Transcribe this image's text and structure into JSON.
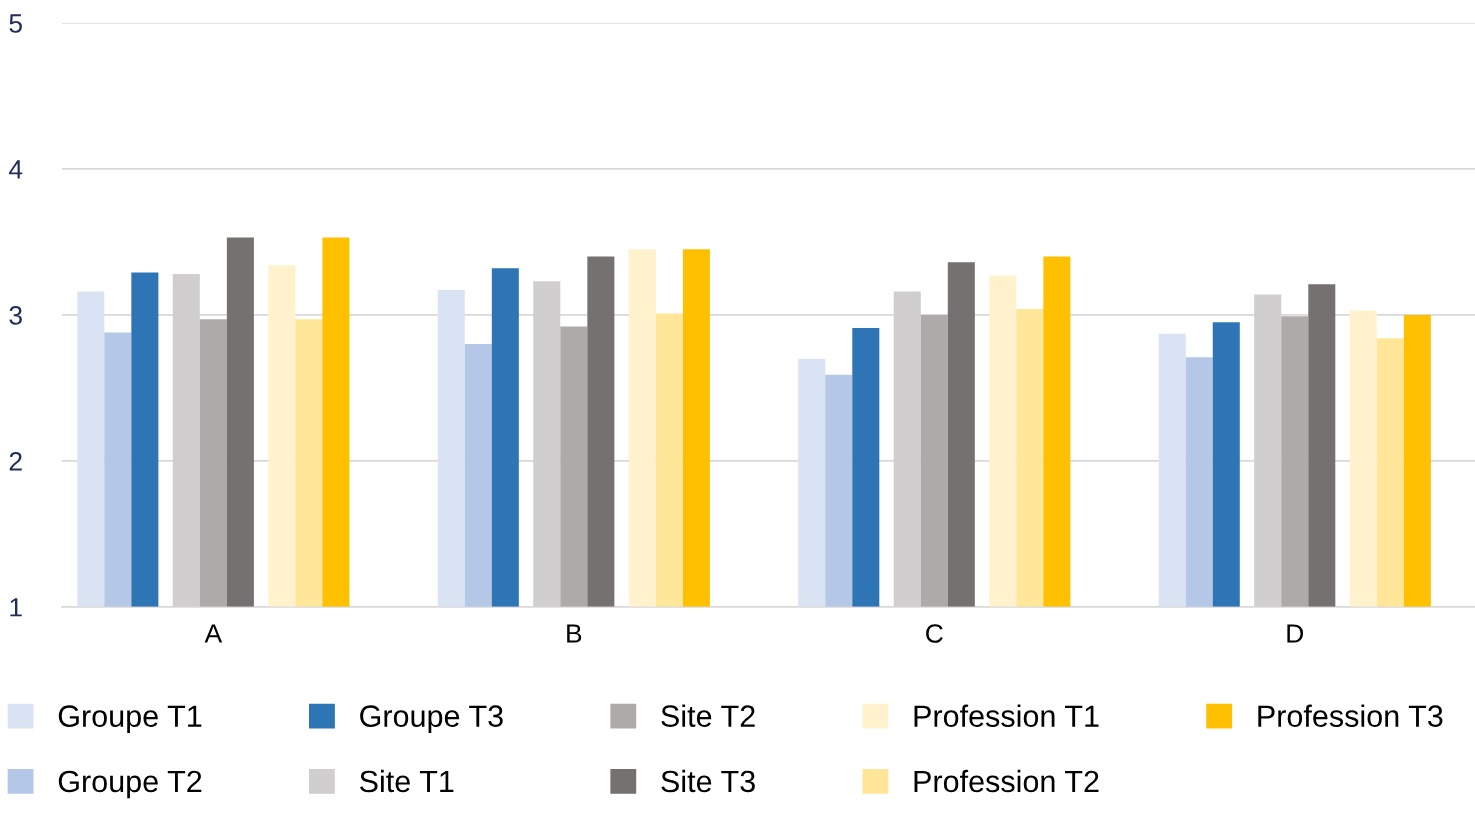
{
  "chart_data": {
    "type": "bar",
    "categories": [
      "A",
      "B",
      "C",
      "D"
    ],
    "series": [
      {
        "name": "Groupe T1",
        "color": "#dae3f3",
        "values": [
          3.16,
          3.17,
          2.7,
          2.87
        ]
      },
      {
        "name": "Groupe T2",
        "color": "#b4c7e7",
        "values": [
          2.88,
          2.8,
          2.59,
          2.71
        ]
      },
      {
        "name": "Groupe T3",
        "color": "#2e75b6",
        "values": [
          3.29,
          3.32,
          2.91,
          2.95
        ]
      },
      {
        "name": "Site T1",
        "color": "#d0cece",
        "values": [
          3.28,
          3.23,
          3.16,
          3.14
        ]
      },
      {
        "name": "Site T2",
        "color": "#aeaaaa",
        "values": [
          2.97,
          2.92,
          3.0,
          2.99
        ]
      },
      {
        "name": "Site T3",
        "color": "#767171",
        "values": [
          3.53,
          3.4,
          3.36,
          3.21
        ]
      },
      {
        "name": "Profession T1",
        "color": "#fff2cc",
        "values": [
          3.34,
          3.45,
          3.27,
          3.03
        ]
      },
      {
        "name": "Profession T2",
        "color": "#ffe699",
        "values": [
          2.97,
          3.01,
          3.04,
          2.84
        ]
      },
      {
        "name": "Profession T3",
        "color": "#ffc000",
        "values": [
          3.53,
          3.45,
          3.4,
          3.0
        ]
      }
    ],
    "ylim": [
      1,
      5
    ],
    "yticks": [
      1,
      2,
      3,
      4,
      5
    ],
    "grid": "y",
    "legend": "bottom"
  }
}
